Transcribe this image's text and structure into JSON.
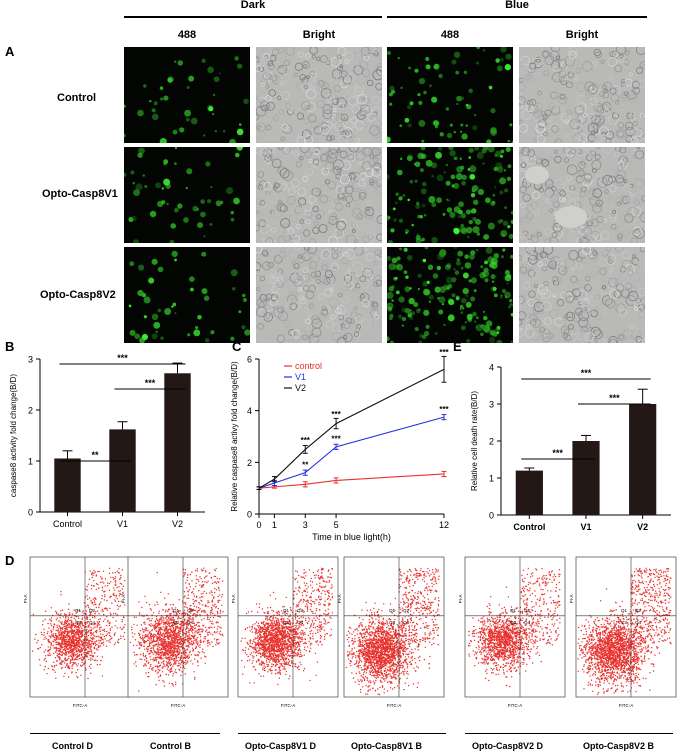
{
  "panel_letters": {
    "A": "A",
    "B": "B",
    "C": "C",
    "D": "D",
    "E": "E"
  },
  "figure_a": {
    "conditions": [
      "Dark",
      "Blue"
    ],
    "channels": [
      "488",
      "Bright",
      "488",
      "Bright"
    ],
    "rows": [
      "Control",
      "Opto-Casp8V1",
      "Opto-Casp8V2"
    ]
  },
  "chart_data": [
    {
      "panel": "B",
      "type": "bar",
      "ylabel": "caspase8 activity fold change(B/D)",
      "xlabel": "",
      "categories": [
        "Control",
        "V1",
        "V2"
      ],
      "values": [
        1.05,
        1.62,
        2.72
      ],
      "errors": [
        0.15,
        0.15,
        0.2
      ],
      "ylim": [
        0,
        3
      ],
      "yticks": [
        "0",
        "1",
        "2",
        "3"
      ],
      "significance": [
        {
          "from": "Control",
          "to": "V1",
          "label": "**"
        },
        {
          "from": "V1",
          "to": "V2",
          "label": "***"
        },
        {
          "from": "Control",
          "to": "V2",
          "label": "***"
        }
      ]
    },
    {
      "panel": "C",
      "type": "line",
      "ylabel": "Relative caspase8 activy fold change(B/D)",
      "xlabel": "Time  in  blue light(h)",
      "x": [
        0,
        1,
        3,
        5,
        12
      ],
      "xticks": [
        "0",
        "1",
        "3",
        "5",
        "12"
      ],
      "yticks": [
        "0",
        "2",
        "4",
        "6"
      ],
      "ylim": [
        0,
        6
      ],
      "series": [
        {
          "name": "control",
          "color": "#e8302c",
          "values": [
            1.0,
            1.05,
            1.15,
            1.3,
            1.55
          ],
          "errors": [
            0.05,
            0.05,
            0.1,
            0.1,
            0.1
          ]
        },
        {
          "name": "V1",
          "color": "#2233dd",
          "values": [
            1.0,
            1.2,
            1.6,
            2.6,
            3.75
          ],
          "errors": [
            0.05,
            0.1,
            0.1,
            0.1,
            0.1
          ]
        },
        {
          "name": "V2",
          "color": "#111111",
          "values": [
            1.0,
            1.35,
            2.5,
            3.5,
            5.6
          ],
          "errors": [
            0.05,
            0.1,
            0.15,
            0.2,
            0.5
          ]
        }
      ],
      "annotations": [
        {
          "x": 3,
          "y": 2.75,
          "label": "***"
        },
        {
          "x": 3,
          "y": 1.8,
          "label": "**"
        },
        {
          "x": 5,
          "y": 3.75,
          "label": "***"
        },
        {
          "x": 5,
          "y": 2.8,
          "label": "***"
        },
        {
          "x": 12,
          "y": 6.15,
          "label": "***"
        },
        {
          "x": 12,
          "y": 3.95,
          "label": "***"
        }
      ],
      "legend_position": "top-left"
    },
    {
      "panel": "E",
      "type": "bar",
      "ylabel": "Relative cell death rate(B/D)",
      "xlabel": "",
      "categories": [
        "Control",
        "V1",
        "V2"
      ],
      "values": [
        1.2,
        2.0,
        3.0
      ],
      "errors": [
        0.07,
        0.15,
        0.4
      ],
      "ylim": [
        0,
        4
      ],
      "yticks": [
        "0",
        "1",
        "2",
        "3",
        "4"
      ],
      "significance": [
        {
          "from": "Control",
          "to": "V1",
          "label": "***"
        },
        {
          "from": "V1",
          "to": "V2",
          "label": "***"
        },
        {
          "from": "Control",
          "to": "V2",
          "label": "***"
        }
      ]
    }
  ],
  "flow": {
    "quadrants": [
      "Q1",
      "Q2",
      "Q3",
      "Q4"
    ],
    "xaxis": "FITC-A",
    "yaxis": "PI-A",
    "panels": [
      "Control D",
      "Control B",
      "Opto-Casp8V1 D",
      "Opto-Casp8V1 B",
      "Opto-Casp8V2 D",
      "Opto-Casp8V2 B"
    ]
  },
  "colors": {
    "bar": "#231815",
    "dots": "#e8302c"
  }
}
